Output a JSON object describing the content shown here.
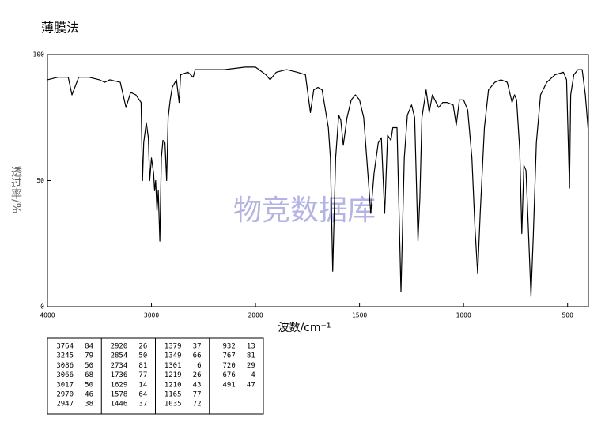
{
  "title": "薄膜法",
  "watermark": "物竞数据库",
  "chart_data": {
    "type": "line",
    "xlabel": "波数/cm⁻¹",
    "ylabel": "透过率/%",
    "xlim": [
      4000,
      400
    ],
    "x_break": 2000,
    "ylim": [
      0,
      100
    ],
    "xticks": [
      4000,
      3000,
      2000,
      1500,
      1000,
      500
    ],
    "yticks": [
      0,
      50,
      100
    ],
    "x": [
      4000,
      3900,
      3800,
      3764,
      3700,
      3600,
      3500,
      3450,
      3400,
      3300,
      3245,
      3200,
      3150,
      3100,
      3086,
      3075,
      3066,
      3050,
      3030,
      3017,
      3000,
      2980,
      2970,
      2960,
      2947,
      2935,
      2920,
      2905,
      2890,
      2870,
      2854,
      2840,
      2820,
      2800,
      2760,
      2734,
      2720,
      2650,
      2600,
      2580,
      2400,
      2300,
      2100,
      2000,
      1950,
      1930,
      1900,
      1850,
      1800,
      1760,
      1736,
      1720,
      1700,
      1680,
      1650,
      1640,
      1629,
      1615,
      1600,
      1590,
      1578,
      1560,
      1540,
      1520,
      1500,
      1480,
      1460,
      1446,
      1430,
      1410,
      1395,
      1379,
      1365,
      1349,
      1340,
      1320,
      1301,
      1285,
      1270,
      1250,
      1235,
      1219,
      1210,
      1200,
      1180,
      1165,
      1150,
      1120,
      1100,
      1080,
      1050,
      1035,
      1020,
      1000,
      980,
      960,
      945,
      932,
      920,
      900,
      880,
      850,
      820,
      790,
      767,
      755,
      745,
      730,
      720,
      710,
      700,
      690,
      676,
      665,
      650,
      630,
      600,
      560,
      520,
      505,
      491,
      485,
      470,
      450,
      430,
      415,
      400
    ],
    "series": [
      {
        "color": "#000000",
        "values": [
          90,
          91,
          91,
          84,
          91,
          91,
          90,
          89,
          90,
          89,
          79,
          85,
          84,
          81,
          50,
          65,
          68,
          73,
          67,
          50,
          59,
          53,
          46,
          50,
          38,
          46,
          26,
          59,
          66,
          65,
          50,
          75,
          82,
          87,
          90,
          81,
          92,
          93,
          91,
          94,
          94,
          94,
          95,
          95,
          92,
          90,
          93,
          94,
          93,
          92,
          77,
          86,
          87,
          86,
          71,
          59,
          14,
          59,
          76,
          74,
          64,
          75,
          82,
          84,
          82,
          75,
          53,
          37,
          53,
          65,
          67,
          37,
          68,
          66,
          71,
          71,
          6,
          59,
          76,
          80,
          75,
          26,
          43,
          75,
          86,
          77,
          84,
          79,
          81,
          81,
          80,
          72,
          82,
          82,
          78,
          59,
          31,
          13,
          37,
          71,
          86,
          89,
          90,
          89,
          81,
          84,
          82,
          62,
          29,
          56,
          54,
          34,
          4,
          28,
          65,
          84,
          89,
          92,
          93,
          90,
          47,
          84,
          92,
          94,
          94,
          84,
          69
        ]
      }
    ]
  },
  "peak_table": [
    [
      [
        3764,
        84
      ],
      [
        3245,
        79
      ],
      [
        3086,
        50
      ],
      [
        3066,
        68
      ],
      [
        3017,
        50
      ],
      [
        2970,
        46
      ],
      [
        2947,
        38
      ]
    ],
    [
      [
        2920,
        26
      ],
      [
        2854,
        50
      ],
      [
        2734,
        81
      ],
      [
        1736,
        77
      ],
      [
        1629,
        14
      ],
      [
        1578,
        64
      ],
      [
        1446,
        37
      ]
    ],
    [
      [
        1379,
        37
      ],
      [
        1349,
        66
      ],
      [
        1301,
        6
      ],
      [
        1219,
        26
      ],
      [
        1210,
        43
      ],
      [
        1165,
        77
      ],
      [
        1035,
        72
      ]
    ],
    [
      [
        932,
        13
      ],
      [
        767,
        81
      ],
      [
        720,
        29
      ],
      [
        676,
        4
      ],
      [
        491,
        47
      ]
    ]
  ]
}
